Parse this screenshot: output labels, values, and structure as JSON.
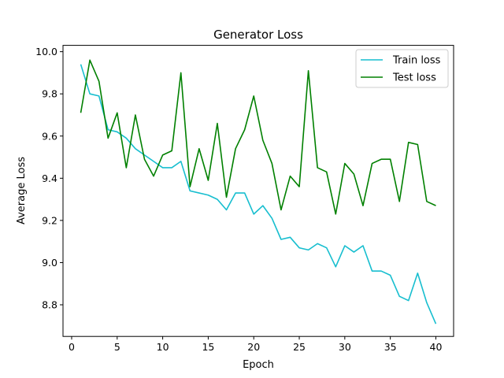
{
  "chart_data": {
    "type": "line",
    "title": "Generator Loss",
    "xlabel": "Epoch",
    "ylabel": "Average Loss",
    "xlim": [
      -0.95,
      41.95
    ],
    "ylim": [
      8.65,
      10.03
    ],
    "xticks": [
      0,
      5,
      10,
      15,
      20,
      25,
      30,
      35,
      40
    ],
    "yticks": [
      8.8,
      9.0,
      9.2,
      9.4,
      9.6,
      9.8,
      10.0
    ],
    "ytick_labels": [
      "8.8",
      "9.0",
      "9.2",
      "9.4",
      "9.6",
      "9.8",
      "10.0"
    ],
    "grid": false,
    "legend_position": "top-right",
    "x": [
      1,
      2,
      3,
      4,
      5,
      6,
      7,
      8,
      9,
      10,
      11,
      12,
      13,
      14,
      15,
      16,
      17,
      18,
      19,
      20,
      21,
      22,
      23,
      24,
      25,
      26,
      27,
      28,
      29,
      30,
      31,
      32,
      33,
      34,
      35,
      36,
      37,
      38,
      39,
      40
    ],
    "series": [
      {
        "name": "Train loss",
        "color": "#17becf",
        "values": [
          9.94,
          9.8,
          9.79,
          9.63,
          9.62,
          9.59,
          9.54,
          9.51,
          9.48,
          9.45,
          9.45,
          9.48,
          9.34,
          9.33,
          9.32,
          9.3,
          9.25,
          9.33,
          9.33,
          9.23,
          9.27,
          9.21,
          9.11,
          9.12,
          9.07,
          9.06,
          9.09,
          9.07,
          8.98,
          9.08,
          9.05,
          9.08,
          8.96,
          8.96,
          8.94,
          8.84,
          8.82,
          8.95,
          8.81,
          8.71
        ]
      },
      {
        "name": "Test loss",
        "color": "#008000",
        "values": [
          9.71,
          9.96,
          9.86,
          9.59,
          9.71,
          9.45,
          9.7,
          9.49,
          9.41,
          9.51,
          9.53,
          9.9,
          9.36,
          9.54,
          9.39,
          9.66,
          9.31,
          9.54,
          9.63,
          9.79,
          9.58,
          9.47,
          9.25,
          9.41,
          9.36,
          9.91,
          9.45,
          9.43,
          9.23,
          9.47,
          9.42,
          9.27,
          9.47,
          9.49,
          9.49,
          9.29,
          9.57,
          9.56,
          9.29,
          9.27
        ]
      }
    ]
  }
}
